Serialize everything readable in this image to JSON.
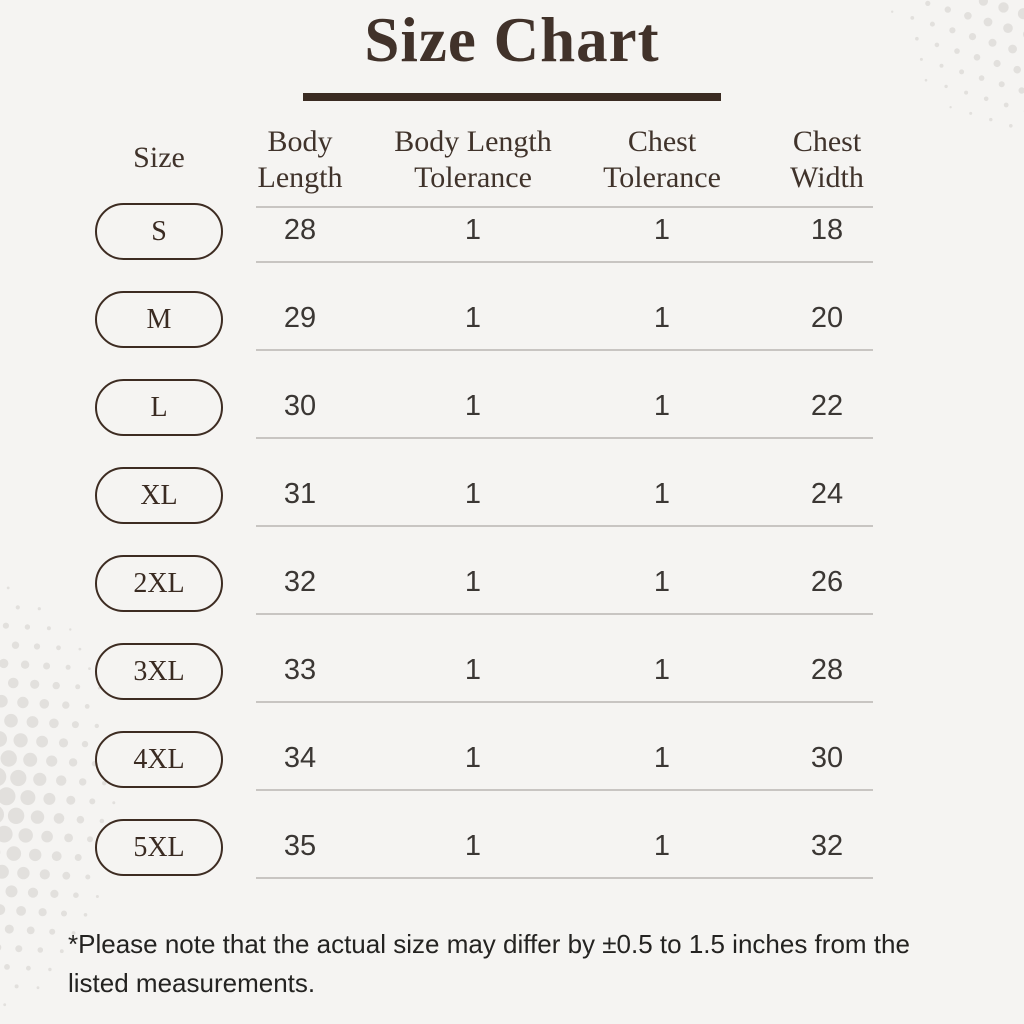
{
  "header": {
    "title": "Size Chart"
  },
  "table": {
    "columns": [
      "Size",
      "Body Length",
      "Body Length Tolerance",
      "Chest Tolerance",
      "Chest Width"
    ],
    "rows": [
      {
        "size": "S",
        "body_length": "28",
        "body_length_tolerance": "1",
        "chest_tolerance": "1",
        "chest_width": "18"
      },
      {
        "size": "M",
        "body_length": "29",
        "body_length_tolerance": "1",
        "chest_tolerance": "1",
        "chest_width": "20"
      },
      {
        "size": "L",
        "body_length": "30",
        "body_length_tolerance": "1",
        "chest_tolerance": "1",
        "chest_width": "22"
      },
      {
        "size": "XL",
        "body_length": "31",
        "body_length_tolerance": "1",
        "chest_tolerance": "1",
        "chest_width": "24"
      },
      {
        "size": "2XL",
        "body_length": "32",
        "body_length_tolerance": "1",
        "chest_tolerance": "1",
        "chest_width": "26"
      },
      {
        "size": "3XL",
        "body_length": "33",
        "body_length_tolerance": "1",
        "chest_tolerance": "1",
        "chest_width": "28"
      },
      {
        "size": "4XL",
        "body_length": "34",
        "body_length_tolerance": "1",
        "chest_tolerance": "1",
        "chest_width": "30"
      },
      {
        "size": "5XL",
        "body_length": "35",
        "body_length_tolerance": "1",
        "chest_tolerance": "1",
        "chest_width": "32"
      }
    ]
  },
  "footer": {
    "note": "*Please note that the actual size may differ by ±0.5 to 1.5 inches from the listed measurements."
  },
  "colors": {
    "background": "#f5f4f2",
    "accent_brown": "#3d2c22",
    "row_rule": "#c8c5c2",
    "halftone_dot": "#e2e0dd",
    "value_text": "#3b3734",
    "note_text": "#242321"
  }
}
